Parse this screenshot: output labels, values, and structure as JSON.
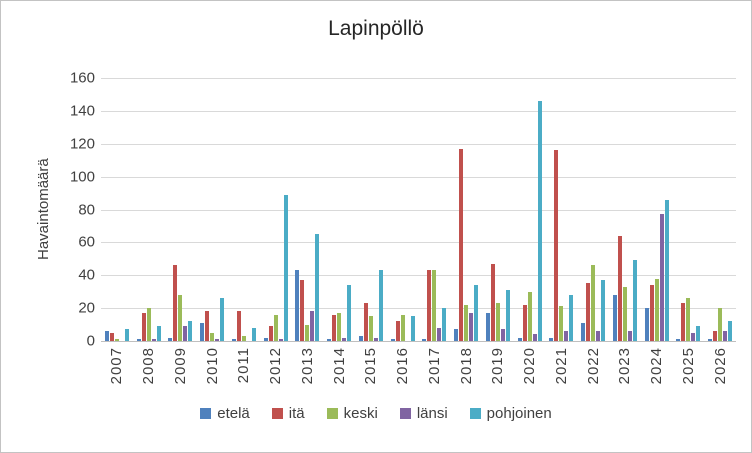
{
  "title": "Lapinpöllö",
  "y_axis_label": "Havaintomäärä",
  "chart_data": {
    "type": "bar",
    "title": "Lapinpöllö",
    "xlabel": "",
    "ylabel": "Havaintomäärä",
    "ylim": [
      0,
      160
    ],
    "ytick_step": 20,
    "grid": true,
    "legend_position": "bottom",
    "categories": [
      "2007",
      "2008",
      "2009",
      "2010",
      "2011",
      "2012",
      "2013",
      "2014",
      "2015",
      "2016",
      "2017",
      "2018",
      "2019",
      "2020",
      "2021",
      "2022",
      "2023",
      "2024",
      "2025",
      "2026"
    ],
    "series": [
      {
        "name": "etelä",
        "color": "#4F81BD",
        "values": [
          6,
          1,
          2,
          11,
          1,
          2,
          43,
          1,
          3,
          1,
          1,
          7,
          17,
          2,
          2,
          11,
          28,
          20,
          1,
          1
        ]
      },
      {
        "name": "itä",
        "color": "#C0504D",
        "values": [
          5,
          17,
          46,
          18,
          18,
          9,
          37,
          16,
          23,
          12,
          43,
          117,
          47,
          22,
          116,
          35,
          64,
          34,
          23,
          6
        ]
      },
      {
        "name": "keski",
        "color": "#9BBB59",
        "values": [
          1,
          20,
          28,
          5,
          3,
          16,
          10,
          17,
          15,
          16,
          43,
          22,
          23,
          30,
          21,
          46,
          33,
          38,
          26,
          20
        ]
      },
      {
        "name": "länsi",
        "color": "#8064A2",
        "values": [
          0,
          1,
          9,
          1,
          0,
          1,
          18,
          2,
          2,
          0,
          8,
          17,
          7,
          4,
          6,
          6,
          6,
          77,
          5,
          6
        ]
      },
      {
        "name": "pohjoinen",
        "color": "#4BACC6",
        "values": [
          7,
          9,
          12,
          26,
          8,
          89,
          65,
          34,
          43,
          15,
          20,
          34,
          31,
          146,
          28,
          37,
          49,
          86,
          9,
          12
        ]
      }
    ]
  }
}
